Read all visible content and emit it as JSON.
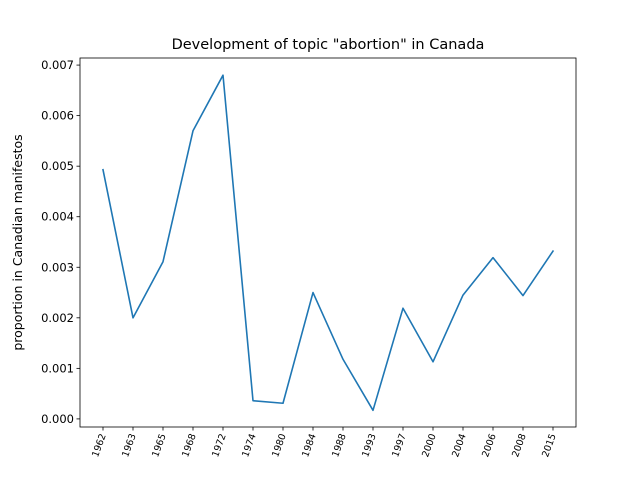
{
  "chart_data": {
    "type": "line",
    "title": "Development of topic \"abortion\" in Canada",
    "xlabel": "",
    "ylabel": "proportion in Canadian manifestos",
    "categories": [
      "1962",
      "1963",
      "1965",
      "1968",
      "1972",
      "1974",
      "1980",
      "1984",
      "1988",
      "1993",
      "1997",
      "2000",
      "2004",
      "2006",
      "2008",
      "2015"
    ],
    "series": [
      {
        "values": [
          0.00493,
          0.002,
          0.00311,
          0.0057,
          0.0068,
          0.00036,
          0.00031,
          0.0025,
          0.00118,
          0.00017,
          0.00219,
          0.00113,
          0.00245,
          0.00319,
          0.00244,
          0.00332
        ],
        "color": "#1f77b4"
      }
    ],
    "yticks": [
      "0.000",
      "0.001",
      "0.002",
      "0.003",
      "0.004",
      "0.005",
      "0.006",
      "0.007"
    ],
    "ylim": [
      -0.00016,
      0.00714
    ],
    "grid": false,
    "legend": "none",
    "x_tick_rotation": "vertical-ish (70 degrees)"
  }
}
